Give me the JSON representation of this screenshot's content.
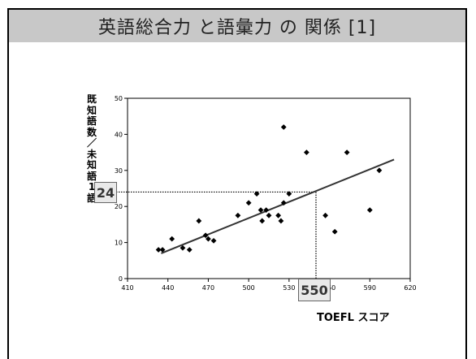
{
  "title": "英語総合力 と語彙力 の 関係 [1]",
  "chart_data": {
    "type": "scatter",
    "title": "英語総合力 と語彙力 の 関係 [1]",
    "xlabel": "TOEFL スコア",
    "ylabel": "既知語数／未知語1語",
    "xlim": [
      410,
      620
    ],
    "ylim": [
      0,
      50
    ],
    "x_ticks": [
      410,
      440,
      470,
      500,
      530,
      560,
      590,
      620
    ],
    "y_ticks": [
      0,
      10,
      20,
      30,
      40,
      50
    ],
    "grid": false,
    "points": [
      {
        "x": 433,
        "y": 8
      },
      {
        "x": 436,
        "y": 8
      },
      {
        "x": 443,
        "y": 11
      },
      {
        "x": 451,
        "y": 8.5
      },
      {
        "x": 456,
        "y": 8
      },
      {
        "x": 463,
        "y": 16
      },
      {
        "x": 468,
        "y": 12
      },
      {
        "x": 470,
        "y": 11
      },
      {
        "x": 474,
        "y": 10.5
      },
      {
        "x": 492,
        "y": 17.5
      },
      {
        "x": 500,
        "y": 21
      },
      {
        "x": 506,
        "y": 23.5
      },
      {
        "x": 509,
        "y": 19
      },
      {
        "x": 510,
        "y": 16
      },
      {
        "x": 513,
        "y": 19
      },
      {
        "x": 515,
        "y": 17.5
      },
      {
        "x": 522,
        "y": 17.5
      },
      {
        "x": 524,
        "y": 16
      },
      {
        "x": 526,
        "y": 21
      },
      {
        "x": 526,
        "y": 42
      },
      {
        "x": 530,
        "y": 23.5
      },
      {
        "x": 543,
        "y": 35
      },
      {
        "x": 557,
        "y": 17.5
      },
      {
        "x": 564,
        "y": 13
      },
      {
        "x": 573,
        "y": 35
      },
      {
        "x": 590,
        "y": 19
      },
      {
        "x": 597,
        "y": 30
      }
    ],
    "trendline": {
      "x": [
        435,
        608
      ],
      "y": [
        7,
        33
      ]
    },
    "highlight": {
      "x": 550,
      "y": 24
    },
    "callout_x_label": "550",
    "callout_y_label": "24"
  },
  "colors": {
    "title_bar": "#c8c8c8",
    "marker": "#000000",
    "trendline": "#333333",
    "callout_fill": "#e9e9e9"
  }
}
